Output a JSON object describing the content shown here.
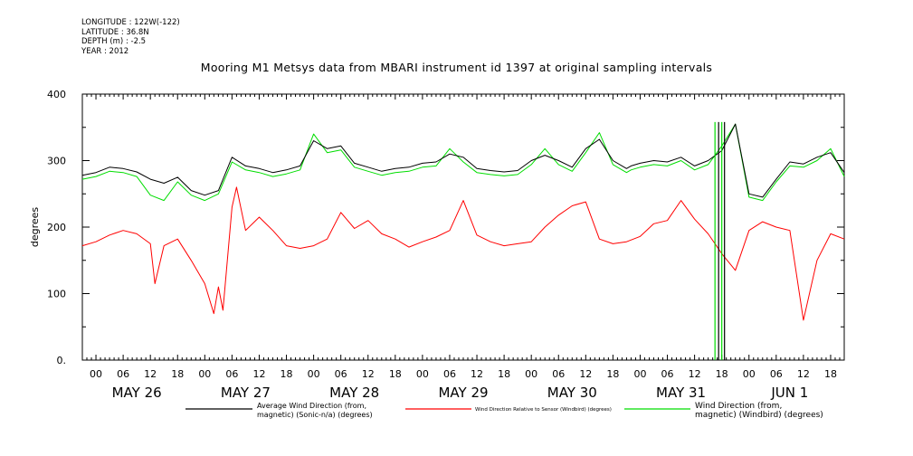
{
  "meta": {
    "longitude": "LONGITUDE : 122W(-122)",
    "latitude": "LATITUDE : 36.8N",
    "depth": "DEPTH (m) : -2.5",
    "year": "YEAR : 2012"
  },
  "title": "Mooring M1 Metsys data from MBARI instrument id 1397 at original sampling intervals",
  "colors": {
    "avg": "#000000",
    "relative": "#ff0000",
    "windbird": "#00dd00"
  },
  "chart_data": {
    "type": "line",
    "ylabel": "degrees",
    "xlabel": "",
    "ylim": [
      0,
      400
    ],
    "yticks": [
      "0.",
      "100",
      "200",
      "300",
      "400"
    ],
    "xlim_hours": [
      -3,
      165
    ],
    "hour_tick_labels": [
      "00",
      "06",
      "12",
      "18"
    ],
    "day_labels": [
      "MAY 26",
      "MAY 27",
      "MAY 28",
      "MAY 29",
      "MAY 30",
      "MAY 31",
      "JUN  1"
    ],
    "x_units": "hours since 2012-05-26 00:00",
    "series": [
      {
        "name": "Average Wind Direction (from, magnetic) (Sonic-n/a) (degrees)",
        "color": "#000000",
        "x": [
          -3,
          0,
          3,
          6,
          9,
          12,
          15,
          18,
          21,
          24,
          27,
          30,
          33,
          36,
          39,
          42,
          45,
          48,
          51,
          54,
          57,
          60,
          63,
          66,
          69,
          72,
          75,
          78,
          81,
          84,
          87,
          90,
          93,
          96,
          99,
          102,
          105,
          108,
          111,
          114,
          117,
          118,
          120,
          123,
          126,
          129,
          132,
          135,
          138,
          141,
          144,
          147,
          150,
          153,
          156,
          159,
          162,
          165
        ],
        "y": [
          278,
          282,
          290,
          288,
          283,
          272,
          266,
          275,
          255,
          248,
          255,
          305,
          292,
          288,
          282,
          286,
          292,
          330,
          318,
          322,
          296,
          290,
          284,
          288,
          290,
          296,
          298,
          310,
          305,
          288,
          285,
          283,
          285,
          300,
          308,
          300,
          290,
          318,
          332,
          300,
          288,
          292,
          296,
          300,
          298,
          305,
          292,
          300,
          315,
          355,
          250,
          245,
          272,
          298,
          295,
          305,
          312,
          282
        ]
      },
      {
        "name": "Wind Direction Relative to Sensor (Windbird) (degrees)",
        "color": "#ff0000",
        "x": [
          -3,
          0,
          3,
          6,
          9,
          12,
          13,
          15,
          18,
          21,
          24,
          26,
          27,
          28,
          30,
          31,
          33,
          36,
          39,
          42,
          45,
          48,
          51,
          54,
          57,
          60,
          63,
          66,
          69,
          72,
          75,
          78,
          81,
          84,
          87,
          90,
          93,
          96,
          99,
          102,
          105,
          108,
          111,
          114,
          117,
          120,
          123,
          126,
          129,
          132,
          135,
          138,
          141,
          144,
          147,
          150,
          153,
          156,
          159,
          162,
          165
        ],
        "y": [
          172,
          178,
          188,
          195,
          190,
          175,
          115,
          172,
          182,
          150,
          115,
          70,
          110,
          75,
          230,
          260,
          195,
          215,
          195,
          172,
          168,
          172,
          182,
          222,
          198,
          210,
          190,
          182,
          170,
          178,
          185,
          195,
          240,
          188,
          178,
          172,
          175,
          178,
          200,
          218,
          232,
          238,
          182,
          175,
          178,
          186,
          205,
          210,
          240,
          212,
          190,
          160,
          135,
          195,
          208,
          200,
          195,
          60,
          150,
          190,
          182
        ]
      },
      {
        "name": "Wind Direction (from, magnetic) (Windbird) (degrees)",
        "color": "#00dd00",
        "x": [
          -3,
          0,
          3,
          6,
          9,
          12,
          15,
          18,
          21,
          24,
          27,
          30,
          33,
          36,
          39,
          42,
          45,
          48,
          51,
          54,
          57,
          60,
          63,
          66,
          69,
          72,
          75,
          78,
          81,
          84,
          87,
          90,
          93,
          96,
          99,
          102,
          105,
          108,
          111,
          114,
          117,
          118,
          120,
          123,
          126,
          129,
          132,
          135,
          138,
          141,
          144,
          147,
          150,
          153,
          156,
          159,
          162,
          165
        ],
        "y": [
          272,
          276,
          284,
          282,
          276,
          248,
          240,
          268,
          248,
          240,
          250,
          298,
          286,
          282,
          276,
          280,
          286,
          340,
          312,
          316,
          290,
          284,
          278,
          282,
          284,
          290,
          292,
          318,
          298,
          282,
          279,
          277,
          279,
          294,
          318,
          294,
          284,
          312,
          342,
          294,
          282,
          286,
          290,
          294,
          292,
          300,
          286,
          294,
          322,
          355,
          245,
          240,
          268,
          292,
          290,
          300,
          318,
          276
        ]
      }
    ]
  },
  "legend": {
    "avg_line1": "Average Wind Direction (from,",
    "avg_line2": "magnetic) (Sonic-n/a) (degrees)",
    "relative": "Wind Direction Relative to Sensor (Windbird) (degrees)",
    "windbird_line1": "Wind Direction (from,",
    "windbird_line2": "magnetic) (Windbird) (degrees)"
  }
}
